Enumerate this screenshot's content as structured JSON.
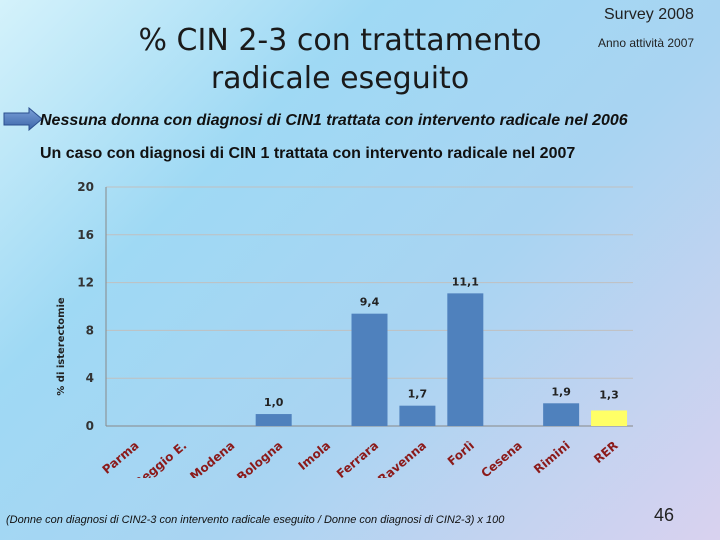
{
  "header": {
    "title_line1": "% CIN 2-3 con trattamento",
    "title_line2": "radicale eseguito",
    "survey": "Survey 2008",
    "anno": "Anno attività 2007"
  },
  "notes": {
    "line1": "Nessuna donna con diagnosi di CIN1 trattata con intervento radicale nel 2006",
    "line2": "Un caso con diagnosi di CIN 1 trattata con intervento radicale nel 2007"
  },
  "footer": {
    "footnote": "(Donne con diagnosi di CIN2-3 con intervento radicale eseguito / Donne con diagnosi di CIN2-3) x 100",
    "page_number": "46"
  },
  "icons": {
    "arrow": "right-arrow-icon"
  },
  "colors": {
    "bar": "#4f81bd",
    "highlight": "#ffff66",
    "grid": "#c0c0c0"
  },
  "chart_data": {
    "type": "bar",
    "ylabel": "% di isterectomie",
    "ylim": [
      0,
      20
    ],
    "yticks": [
      0,
      4,
      8,
      12,
      16,
      20
    ],
    "categories": [
      "Parma",
      "Reggio E.",
      "Modena",
      "Bologna",
      "Imola",
      "Ferrara",
      "Ravenna",
      "Forlì",
      "Cesena",
      "Rimini",
      "RER"
    ],
    "values": [
      null,
      null,
      null,
      1.0,
      null,
      9.4,
      1.7,
      11.1,
      null,
      1.9,
      1.3
    ],
    "labels": [
      "",
      "",
      "",
      "1,0",
      "",
      "9,4",
      "1,7",
      "11,1",
      "",
      "1,9",
      "1,3"
    ],
    "highlight_category": "RER"
  }
}
